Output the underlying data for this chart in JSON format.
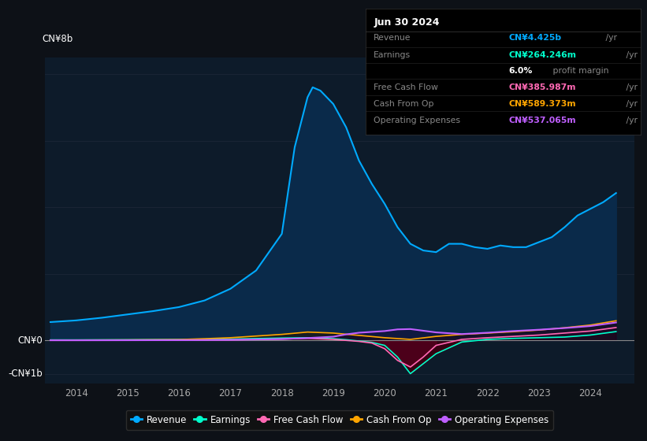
{
  "bg_color": "#0d1117",
  "plot_bg_color": "#0d1b2a",
  "title": "Jun 30 2024",
  "info_box": {
    "Revenue": {
      "value": "CN¥4.425b",
      "color": "#00aaff"
    },
    "Earnings": {
      "value": "CN¥264.246m",
      "color": "#00ffcc"
    },
    "profit_margin_pct": "6.0%",
    "profit_margin_text": " profit margin",
    "Free Cash Flow": {
      "value": "CN¥385.987m",
      "color": "#ff69b4"
    },
    "Cash From Op": {
      "value": "CN¥589.373m",
      "color": "#ffa500"
    },
    "Operating Expenses": {
      "value": "CN¥537.065m",
      "color": "#bf5fff"
    }
  },
  "ylabel_top": "CN¥8b",
  "ylabel_zero": "CN¥0",
  "ylabel_neg": "-CN¥1b",
  "ylim": [
    -1300000000.0,
    8500000000.0
  ],
  "ytick_vals": [
    -1000000000.0,
    0,
    8000000000.0
  ],
  "xlim_start": 2013.4,
  "xlim_end": 2024.85,
  "xticks": [
    2014,
    2015,
    2016,
    2017,
    2018,
    2019,
    2020,
    2021,
    2022,
    2023,
    2024
  ],
  "revenue_x": [
    2013.5,
    2014.0,
    2014.5,
    2015.0,
    2015.5,
    2016.0,
    2016.5,
    2017.0,
    2017.5,
    2018.0,
    2018.25,
    2018.5,
    2018.6,
    2018.75,
    2019.0,
    2019.25,
    2019.5,
    2019.75,
    2020.0,
    2020.25,
    2020.5,
    2020.75,
    2021.0,
    2021.25,
    2021.5,
    2021.75,
    2022.0,
    2022.25,
    2022.5,
    2022.75,
    2023.0,
    2023.25,
    2023.5,
    2023.75,
    2024.0,
    2024.25,
    2024.5
  ],
  "revenue_y": [
    550000000,
    600000000,
    680000000,
    780000000,
    880000000,
    1000000000,
    1200000000,
    1550000000,
    2100000000,
    3200000000,
    5800000000,
    7300000000,
    7600000000,
    7500000000,
    7100000000,
    6400000000,
    5400000000,
    4700000000,
    4100000000,
    3400000000,
    2900000000,
    2700000000,
    2650000000,
    2900000000,
    2900000000,
    2800000000,
    2750000000,
    2850000000,
    2800000000,
    2800000000,
    2950000000,
    3100000000,
    3400000000,
    3750000000,
    3950000000,
    4150000000,
    4425000000
  ],
  "earnings_x": [
    2013.5,
    2014.0,
    2015.0,
    2016.0,
    2017.0,
    2017.5,
    2018.0,
    2018.5,
    2019.0,
    2019.25,
    2019.5,
    2019.75,
    2020.0,
    2020.25,
    2020.5,
    2020.75,
    2021.0,
    2021.5,
    2022.0,
    2022.5,
    2023.0,
    2023.5,
    2024.0,
    2024.5
  ],
  "earnings_y": [
    15000000,
    15000000,
    20000000,
    30000000,
    40000000,
    55000000,
    70000000,
    80000000,
    50000000,
    20000000,
    -20000000,
    -60000000,
    -150000000,
    -500000000,
    -1000000000,
    -700000000,
    -400000000,
    -50000000,
    30000000,
    60000000,
    80000000,
    100000000,
    160000000,
    264000000
  ],
  "fcf_x": [
    2013.5,
    2014.0,
    2015.0,
    2016.0,
    2017.0,
    2018.0,
    2018.5,
    2019.0,
    2019.5,
    2019.75,
    2020.0,
    2020.25,
    2020.5,
    2020.75,
    2021.0,
    2021.5,
    2022.0,
    2022.5,
    2023.0,
    2023.5,
    2024.0,
    2024.5
  ],
  "fcf_y": [
    5000000,
    5000000,
    8000000,
    10000000,
    15000000,
    40000000,
    60000000,
    30000000,
    -30000000,
    -80000000,
    -250000000,
    -600000000,
    -800000000,
    -500000000,
    -150000000,
    30000000,
    80000000,
    120000000,
    160000000,
    220000000,
    280000000,
    386000000
  ],
  "cop_x": [
    2013.5,
    2014.0,
    2015.0,
    2016.0,
    2016.5,
    2017.0,
    2017.5,
    2018.0,
    2018.5,
    2019.0,
    2019.5,
    2020.0,
    2020.5,
    2021.0,
    2021.5,
    2022.0,
    2022.5,
    2023.0,
    2023.5,
    2024.0,
    2024.5
  ],
  "cop_y": [
    8000000,
    10000000,
    15000000,
    25000000,
    50000000,
    80000000,
    130000000,
    180000000,
    250000000,
    220000000,
    150000000,
    80000000,
    30000000,
    120000000,
    180000000,
    220000000,
    260000000,
    310000000,
    380000000,
    460000000,
    589000000
  ],
  "oe_x": [
    2013.5,
    2014.0,
    2015.0,
    2016.0,
    2017.0,
    2018.0,
    2018.5,
    2019.0,
    2019.25,
    2019.5,
    2020.0,
    2020.25,
    2020.5,
    2021.0,
    2021.5,
    2022.0,
    2022.5,
    2023.0,
    2023.5,
    2024.0,
    2024.5
  ],
  "oe_y": [
    3000000,
    3000000,
    5000000,
    8000000,
    15000000,
    40000000,
    70000000,
    110000000,
    180000000,
    230000000,
    280000000,
    330000000,
    340000000,
    240000000,
    190000000,
    230000000,
    280000000,
    320000000,
    370000000,
    430000000,
    537000000
  ],
  "legend_items": [
    {
      "label": "Revenue",
      "color": "#00aaff"
    },
    {
      "label": "Earnings",
      "color": "#00ffcc"
    },
    {
      "label": "Free Cash Flow",
      "color": "#ff69b4"
    },
    {
      "label": "Cash From Op",
      "color": "#ffa500"
    },
    {
      "label": "Operating Expenses",
      "color": "#bf5fff"
    }
  ],
  "grid_color": "#1a2535",
  "grid_h_positions": [
    -1000000000,
    0,
    2000000000,
    4000000000,
    6000000000,
    8000000000
  ],
  "zero_line_color": "#888888"
}
